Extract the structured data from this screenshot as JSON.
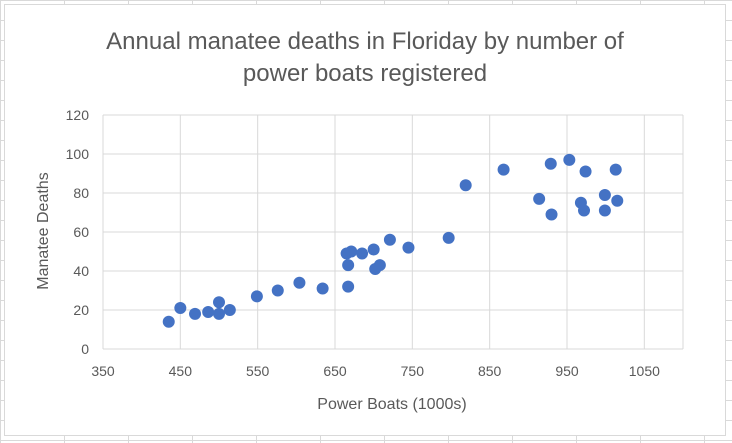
{
  "chart_data": {
    "type": "scatter",
    "title_lines": [
      "Annual manatee deaths in Floriday by number of",
      "power boats registered"
    ],
    "xlabel": "Power Boats (1000s)",
    "ylabel": "Manatee Deaths",
    "xlim": [
      350,
      1100
    ],
    "ylim": [
      0,
      120
    ],
    "x_ticks": [
      350,
      450,
      550,
      650,
      750,
      850,
      950,
      1050
    ],
    "y_ticks": [
      0,
      20,
      40,
      60,
      80,
      100,
      120
    ],
    "grid": true,
    "legend": "none",
    "marker_color": "#4472c4",
    "points": [
      [
        435,
        14
      ],
      [
        450,
        21
      ],
      [
        469,
        18
      ],
      [
        486,
        19
      ],
      [
        500,
        24
      ],
      [
        500,
        18
      ],
      [
        514,
        20
      ],
      [
        549,
        27
      ],
      [
        576,
        30
      ],
      [
        604,
        34
      ],
      [
        634,
        31
      ],
      [
        665,
        49
      ],
      [
        667,
        43
      ],
      [
        667,
        32
      ],
      [
        671,
        50
      ],
      [
        685,
        49
      ],
      [
        700,
        51
      ],
      [
        702,
        41
      ],
      [
        708,
        43
      ],
      [
        721,
        56
      ],
      [
        745,
        52
      ],
      [
        797,
        57
      ],
      [
        819,
        84
      ],
      [
        868,
        92
      ],
      [
        914,
        77
      ],
      [
        929,
        95
      ],
      [
        930,
        69
      ],
      [
        953,
        97
      ],
      [
        968,
        75
      ],
      [
        972,
        71
      ],
      [
        974,
        91
      ],
      [
        999,
        79
      ],
      [
        999,
        71
      ],
      [
        1013,
        92
      ],
      [
        1015,
        76
      ]
    ]
  }
}
